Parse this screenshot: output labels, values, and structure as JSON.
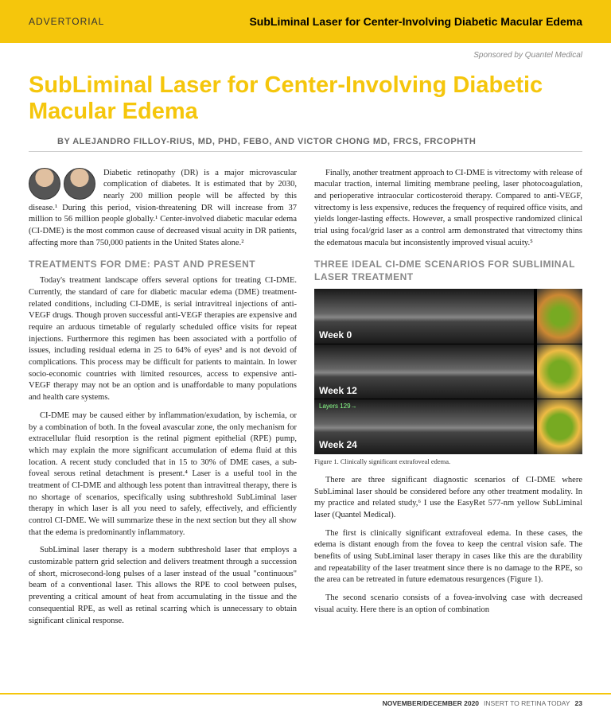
{
  "header": {
    "left": "ADVERTORIAL",
    "right": "SubLiminal Laser for Center-Involving Diabetic Macular Edema"
  },
  "sponsor": "Sponsored by Quantel Medical",
  "title": "SubLiminal Laser for Center-Involving Diabetic Macular Edema",
  "byline": "BY ALEJANDRO FILLOY-RIUS, MD, PHD, FEBO, AND VICTOR CHONG MD, FRCS, FRCOPHTH",
  "col1": {
    "p1": "Diabetic retinopathy (DR) is a major microvascular complication of diabetes. It is estimated that by 2030, nearly 200 million people will be affected by this disease.¹ During this period, vision-threatening DR will increase from 37 million to 56 million people globally.¹ Center-involved diabetic macular edema (CI-DME) is the most common cause of decreased visual acuity in DR patients, affecting more than 750,000 patients in the United States alone.²",
    "sec1": "TREATMENTS FOR DME: PAST AND PRESENT",
    "p2": "Today's treatment landscape offers several options for treating CI-DME. Currently, the standard of care for diabetic macular edema (DME) treatment-related conditions, including CI-DME, is serial intravitreal injections of anti-VEGF drugs. Though proven successful anti-VEGF therapies are expensive and require an arduous timetable of regularly scheduled office visits for repeat injections. Furthermore this regimen has been associated with a portfolio of issues, including residual edema in 25 to 64% of eyes³ and is not devoid of complications. This process may be difficult for patients to maintain. In lower socio-economic countries with limited resources, access to expensive anti-VEGF therapy may not be an option and is unaffordable to many populations and health care systems.",
    "p3": "CI-DME may be caused either by inflammation/exudation, by ischemia, or by a combination of both. In the foveal avascular zone, the only mechanism for extracellular fluid resorption is the retinal pigment epithelial (RPE) pump, which may explain the more significant accumulation of edema fluid at this location. A recent study concluded that in 15 to 30% of DME cases, a sub-foveal serous retinal detachment is present.⁴ Laser is a useful tool in the treatment of CI-DME and although less potent than intravitreal therapy, there is no shortage of scenarios, specifically using subthreshold SubLiminal laser therapy in which laser is all you need to safely, effectively, and efficiently control CI-DME. We will summarize these in the next section but they all show that the edema is predominantly inflammatory.",
    "p4": "SubLiminal laser therapy is a modern subthreshold laser that employs a customizable pattern grid selection and delivers treatment through a succession of short, microsecond-long pulses of a laser instead of the usual \"continuous\" beam of a conventional laser. This allows the RPE to cool between pulses, preventing a critical amount of heat from accumulating in the tissue and the consequential RPE, as well as retinal scarring which is unnecessary to obtain significant clinical response."
  },
  "col2": {
    "p1": "Finally, another treatment approach to CI-DME is vitrectomy with release of macular traction, internal limiting membrane peeling, laser photocoagulation, and perioperative intraocular corticosteroid therapy. Compared to anti-VEGF, vitrectomy is less expensive, reduces the frequency of required office visits, and yields longer-lasting effects. However, a small prospective randomized clinical trial using focal/grid laser as a control arm demonstrated that vitrectomy thins the edematous macula but inconsistently improved visual acuity.⁵",
    "sec1": "THREE IDEAL CI-DME SCENARIOS FOR SUBLIMINAL LASER TREATMENT",
    "week0": "Week 0",
    "week12": "Week 12",
    "week24": "Week 24",
    "layers": "Layers   129→",
    "caption": "Figure 1. Clinically significant extrafoveal edema.",
    "p2": "There are three significant diagnostic scenarios of CI-DME where SubLiminal laser should be considered before any other treatment modality. In my practice and related study,⁶ I use the EasyRet 577-nm yellow SubLiminal laser (Quantel Medical).",
    "p3": "The first is clinically significant extrafoveal edema. In these cases, the edema is distant enough from the fovea to keep the central vision safe. The benefits of using SubLiminal laser therapy in cases like this are the durability and repeatability of the laser treatment since there is no damage to the RPE, so the area can be retreated in future edematous resurgences (Figure 1).",
    "p4": "The second scenario consists of a fovea-involving case with decreased visual acuity. Here there is an option of combination"
  },
  "footer": {
    "date": "NOVEMBER/DECEMBER 2020",
    "pub": "INSERT TO RETINA TODAY",
    "page": "23"
  }
}
